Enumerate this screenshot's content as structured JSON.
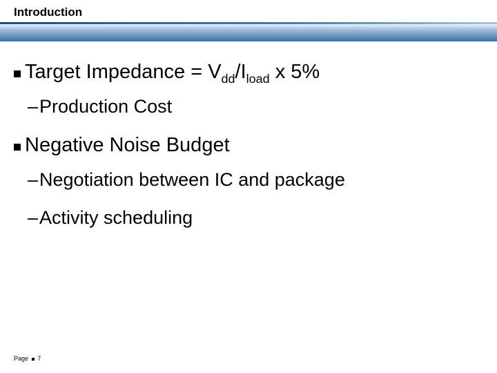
{
  "slide": {
    "title": "Introduction",
    "title_fontsize": 17,
    "title_fontweight": "bold",
    "title_color": "#000000",
    "banner_gradient": [
      "#ffffff",
      "#a8c4e0",
      "#4a7db0"
    ],
    "underline_gradient": [
      "#1a4d80",
      "#4a7db0",
      "#a8c4e0"
    ],
    "body_fontsize_l1": 29,
    "body_fontsize_l2": 27,
    "bullet_color": "#000000",
    "text_color": "#000000",
    "background_color": "#ffffff"
  },
  "bullets": {
    "b1_pre": "Target  Impedance = V",
    "b1_sub1": "dd",
    "b1_mid": "/I",
    "b1_sub2": "load",
    "b1_post": " x 5%",
    "b1a": "Production Cost",
    "b2": "Negative Noise Budget",
    "b2a": "Negotiation between IC and package",
    "b2b": "Activity scheduling"
  },
  "footer": {
    "page_label": "Page",
    "page_num": "7",
    "fontsize": 9
  }
}
